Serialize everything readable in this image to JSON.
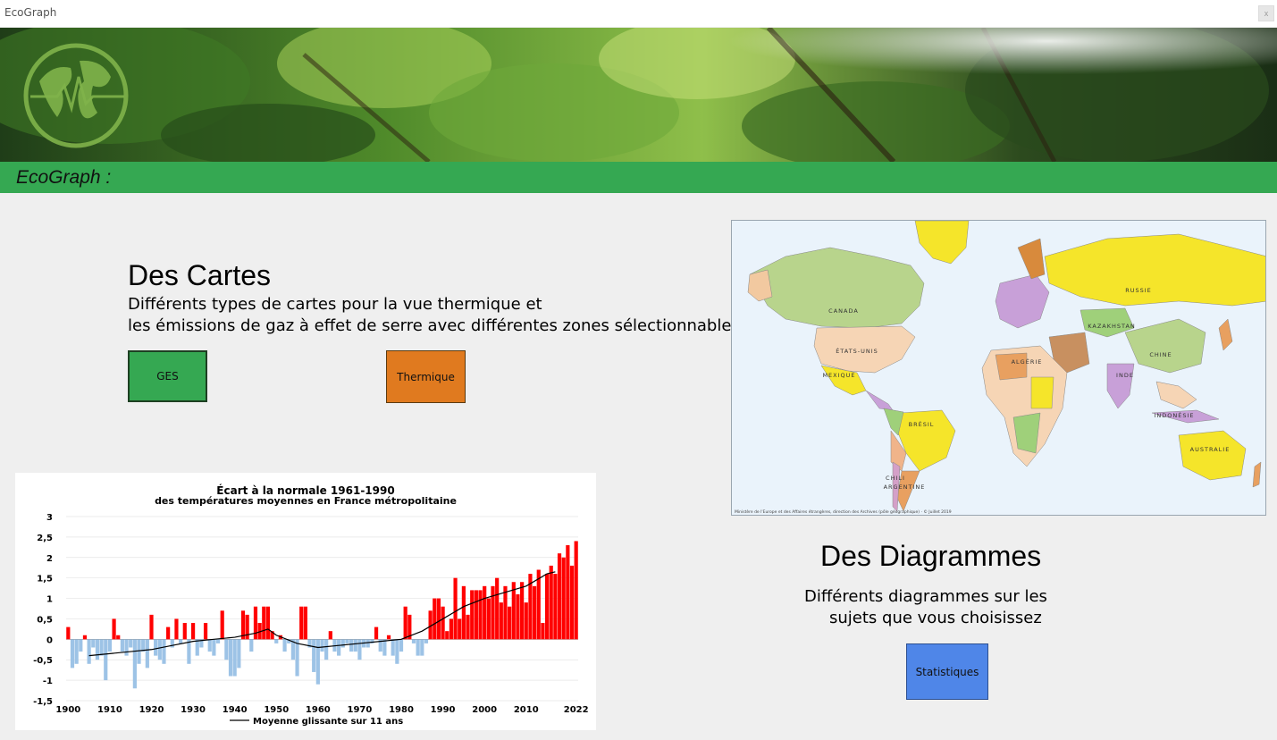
{
  "window": {
    "title": "EcoGraph",
    "close_label": "x"
  },
  "header": {
    "brand": "EcoGraph :"
  },
  "maps_section": {
    "title": "Des Cartes",
    "description_line1": "Différents types de cartes pour la vue thermique et",
    "description_line2": "les émissions de gaz à effet de serre avec différentes zones sélectionnables.",
    "ges_button": "GES",
    "thermal_button": "Thermique"
  },
  "diagrams_section": {
    "title": "Des Diagrammes",
    "description_line1": "Différents diagrammes sur les",
    "description_line2": "sujets que vous choisissez",
    "stats_button": "Statistiques"
  },
  "world_map": {
    "labels": [
      "CANADA",
      "ÉTATS-UNIS",
      "MEXIQUE",
      "BRÉSIL",
      "ARGENTINE",
      "CHILI",
      "RUSSIE",
      "CHINE",
      "INDE",
      "KAZAKHSTAN",
      "INDONÉSIE",
      "AUSTRALIE",
      "ALGÉRIE"
    ],
    "credit": "Ministère de l'Europe et des Affaires étrangères, direction des Archives (pôle géographique) · © Juillet 2019"
  },
  "colors": {
    "green": "#35a852",
    "orange": "#e07a1f",
    "blue": "#4f86e8",
    "bar_positive": "#ff0000",
    "bar_negative": "#9dc3e6"
  },
  "chart_data": {
    "type": "bar",
    "title": "Écart à la normale 1961-1990",
    "subtitle": "des températures moyennes en France métropolitaine",
    "legend": "Moyenne glissante sur 11 ans",
    "ylim": [
      -1.5,
      3
    ],
    "yticks": [
      "3",
      "2,5",
      "2",
      "1,5",
      "1",
      "0,5",
      "0",
      "-0,5",
      "-1",
      "-1,5"
    ],
    "xticks": [
      "1900",
      "1910",
      "1920",
      "1930",
      "1940",
      "1950",
      "1960",
      "1970",
      "1980",
      "1990",
      "2000",
      "2010",
      "2022"
    ],
    "x": [
      1900,
      1901,
      1902,
      1903,
      1904,
      1905,
      1906,
      1907,
      1908,
      1909,
      1910,
      1911,
      1912,
      1913,
      1914,
      1915,
      1916,
      1917,
      1918,
      1919,
      1920,
      1921,
      1922,
      1923,
      1924,
      1925,
      1926,
      1927,
      1928,
      1929,
      1930,
      1931,
      1932,
      1933,
      1934,
      1935,
      1936,
      1937,
      1938,
      1939,
      1940,
      1941,
      1942,
      1943,
      1944,
      1945,
      1946,
      1947,
      1948,
      1949,
      1950,
      1951,
      1952,
      1953,
      1954,
      1955,
      1956,
      1957,
      1958,
      1959,
      1960,
      1961,
      1962,
      1963,
      1964,
      1965,
      1966,
      1967,
      1968,
      1969,
      1970,
      1971,
      1972,
      1973,
      1974,
      1975,
      1976,
      1977,
      1978,
      1979,
      1980,
      1981,
      1982,
      1983,
      1984,
      1985,
      1986,
      1987,
      1988,
      1989,
      1990,
      1991,
      1992,
      1993,
      1994,
      1995,
      1996,
      1997,
      1998,
      1999,
      2000,
      2001,
      2002,
      2003,
      2004,
      2005,
      2006,
      2007,
      2008,
      2009,
      2010,
      2011,
      2012,
      2013,
      2014,
      2015,
      2016,
      2017,
      2018,
      2019,
      2020,
      2021,
      2022
    ],
    "values": [
      0.3,
      -0.7,
      -0.6,
      -0.3,
      0.1,
      -0.6,
      -0.2,
      -0.5,
      -0.4,
      -1.0,
      -0.3,
      0.5,
      0.1,
      -0.3,
      -0.4,
      -0.2,
      -1.2,
      -0.6,
      -0.3,
      -0.7,
      0.6,
      -0.4,
      -0.5,
      -0.6,
      0.3,
      -0.2,
      0.5,
      -0.1,
      0.4,
      -0.6,
      0.4,
      -0.4,
      -0.2,
      0.4,
      -0.3,
      -0.4,
      -0.1,
      0.7,
      -0.5,
      -0.9,
      -0.9,
      -0.7,
      0.7,
      0.6,
      -0.3,
      0.8,
      0.4,
      0.8,
      0.8,
      0.2,
      -0.1,
      0.1,
      -0.3,
      -0.1,
      -0.5,
      -0.9,
      0.8,
      0.8,
      -0.2,
      -0.8,
      -1.1,
      -0.3,
      -0.5,
      0.2,
      -0.3,
      -0.4,
      -0.2,
      -0.1,
      -0.3,
      -0.3,
      -0.5,
      -0.2,
      -0.2,
      -0.1,
      0.3,
      -0.3,
      -0.4,
      0.1,
      -0.4,
      -0.6,
      -0.3,
      0.8,
      0.6,
      -0.1,
      -0.4,
      -0.4,
      -0.1,
      0.7,
      1.0,
      1.0,
      0.8,
      0.2,
      0.5,
      1.5,
      0.5,
      1.3,
      0.6,
      1.2,
      1.2,
      1.2,
      1.3,
      1.0,
      1.3,
      1.5,
      0.9,
      1.3,
      0.8,
      1.4,
      1.1,
      1.4,
      0.9,
      1.6,
      1.3,
      1.7,
      0.4,
      1.6,
      1.8,
      1.6,
      2.1,
      2.0,
      2.3,
      1.8,
      2.4
    ],
    "moving_average_x": [
      1905,
      1910,
      1915,
      1920,
      1925,
      1930,
      1935,
      1940,
      1945,
      1948,
      1950,
      1955,
      1960,
      1965,
      1970,
      1975,
      1980,
      1985,
      1990,
      1995,
      2000,
      2005,
      2010,
      2015,
      2017
    ],
    "moving_average": [
      -0.4,
      -0.35,
      -0.3,
      -0.25,
      -0.15,
      -0.05,
      0.0,
      0.05,
      0.15,
      0.25,
      0.1,
      -0.1,
      -0.2,
      -0.15,
      -0.1,
      -0.05,
      0.0,
      0.2,
      0.5,
      0.8,
      1.0,
      1.15,
      1.3,
      1.6,
      1.65
    ]
  }
}
